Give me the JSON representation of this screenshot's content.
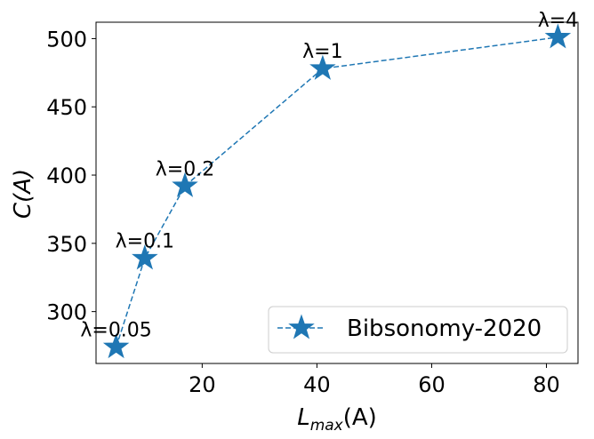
{
  "chart_data": {
    "type": "line",
    "xlabel_main": "L",
    "xlabel_sub": "max",
    "xlabel_suffix": "(A)",
    "ylabel": "C(A)",
    "xlim": [
      1.5,
      85.5
    ],
    "ylim": [
      262,
      512
    ],
    "xticks": [
      20,
      40,
      60,
      80
    ],
    "yticks": [
      300,
      350,
      400,
      450,
      500
    ],
    "grid": false,
    "legend_position": "lower-right",
    "series": [
      {
        "name": "Bibsonomy-2020",
        "color": "#1f77b4",
        "marker": "star",
        "linestyle": "dashed",
        "x": [
          5,
          10,
          17,
          41,
          82
        ],
        "y": [
          274,
          339,
          392,
          478,
          501
        ],
        "labels": [
          "λ=0.05",
          "λ=0.1",
          "λ=0.2",
          "λ=1",
          "λ=4"
        ]
      }
    ]
  }
}
